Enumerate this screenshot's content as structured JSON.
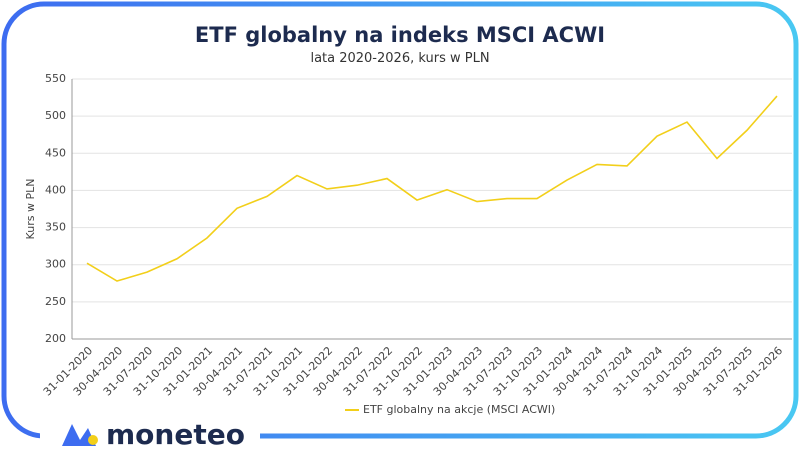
{
  "chart_data": {
    "type": "line",
    "title": "ETF globalny na indeks MSCI ACWI",
    "subtitle": "lata 2020-2026, kurs w PLN",
    "y_label": "Kurs w PLN",
    "categories": [
      "31-01-2020",
      "30-04-2020",
      "31-07-2020",
      "31-10-2020",
      "31-01-2021",
      "30-04-2021",
      "31-07-2021",
      "31-10-2021",
      "31-01-2022",
      "30-04-2022",
      "31-07-2022",
      "31-10-2022",
      "31-01-2023",
      "30-04-2023",
      "31-07-2023",
      "31-10-2023",
      "31-01-2024",
      "30-04-2024",
      "31-07-2024",
      "31-10-2024",
      "31-01-2025",
      "30-04-2025",
      "31-07-2025",
      "31-01-2026"
    ],
    "series": [
      {
        "name": "ETF globalny na akcje (MSCI ACWI)",
        "color": "#f2cf1a",
        "values": [
          302,
          278,
          290,
          308,
          336,
          376,
          392,
          420,
          402,
          407,
          416,
          387,
          401,
          385,
          389,
          389,
          414,
          435,
          433,
          473,
          492,
          443,
          481,
          527
        ]
      }
    ],
    "ylim": [
      200,
      550
    ],
    "yticks": [
      200,
      250,
      300,
      350,
      400,
      450,
      500,
      550
    ],
    "grid": true,
    "legend": "bottom"
  },
  "brand": "moneteo"
}
